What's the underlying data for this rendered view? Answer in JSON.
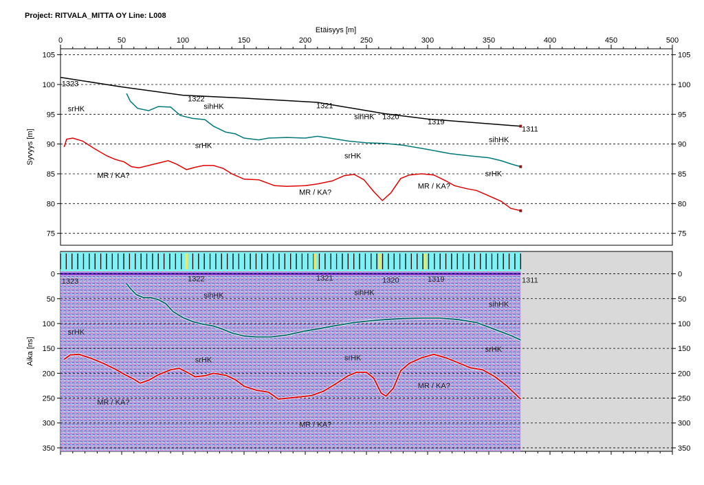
{
  "header": {
    "project_label": "Project: RITVALA_MITTA OY  Line: L008"
  },
  "chart_data": [
    {
      "type": "line",
      "panel": "elevation",
      "xlabel": "Etäisyys [m]",
      "ylabel": "Syvyys [m]",
      "xlim": [
        0,
        500
      ],
      "ylim": [
        73,
        106
      ],
      "x_ticks": [
        0,
        50,
        100,
        150,
        200,
        250,
        300,
        350,
        400,
        450,
        500
      ],
      "y_ticks": [
        75,
        80,
        85,
        90,
        95,
        100,
        105
      ],
      "grid": "horizontal dashed",
      "series": [
        {
          "color": "#000000",
          "points": [
            [
              0,
              101.2
            ],
            [
              50,
              99.6
            ],
            [
              100,
              98.2
            ],
            [
              150,
              97.7
            ],
            [
              210,
              97.0
            ],
            [
              265,
              95.1
            ],
            [
              300,
              94.2
            ],
            [
              376,
              93.0
            ]
          ]
        },
        {
          "color": "#007878",
          "points": [
            [
              54,
              98.5
            ],
            [
              57,
              97.2
            ],
            [
              63,
              96.0
            ],
            [
              72,
              95.6
            ],
            [
              80,
              96.3
            ],
            [
              90,
              96.2
            ],
            [
              98,
              94.8
            ],
            [
              108,
              94.3
            ],
            [
              118,
              94.1
            ],
            [
              125,
              93.0
            ],
            [
              135,
              92.0
            ],
            [
              143,
              91.7
            ],
            [
              150,
              91.0
            ],
            [
              162,
              90.7
            ],
            [
              170,
              91.0
            ],
            [
              185,
              91.1
            ],
            [
              200,
              91.0
            ],
            [
              210,
              91.3
            ],
            [
              220,
              91.0
            ],
            [
              235,
              90.5
            ],
            [
              250,
              90.2
            ],
            [
              265,
              90.1
            ],
            [
              280,
              89.8
            ],
            [
              300,
              89.1
            ],
            [
              318,
              88.4
            ],
            [
              335,
              88.0
            ],
            [
              350,
              87.7
            ],
            [
              360,
              87.2
            ],
            [
              369,
              86.6
            ],
            [
              376,
              86.2
            ]
          ]
        },
        {
          "color": "#e00000",
          "points": [
            [
              3,
              89.5
            ],
            [
              5,
              90.8
            ],
            [
              10,
              91.0
            ],
            [
              18,
              90.5
            ],
            [
              28,
              89.2
            ],
            [
              38,
              88.0
            ],
            [
              45,
              87.4
            ],
            [
              52,
              87.0
            ],
            [
              58,
              86.2
            ],
            [
              64,
              86.0
            ],
            [
              72,
              86.4
            ],
            [
              80,
              86.8
            ],
            [
              88,
              87.2
            ],
            [
              95,
              86.6
            ],
            [
              103,
              85.7
            ],
            [
              110,
              86.1
            ],
            [
              117,
              86.4
            ],
            [
              125,
              86.4
            ],
            [
              133,
              85.9
            ],
            [
              140,
              85.0
            ],
            [
              150,
              84.1
            ],
            [
              162,
              84.0
            ],
            [
              175,
              83.0
            ],
            [
              185,
              82.9
            ],
            [
              200,
              83.0
            ],
            [
              210,
              83.3
            ],
            [
              222,
              83.8
            ],
            [
              232,
              84.7
            ],
            [
              240,
              84.9
            ],
            [
              248,
              84.0
            ],
            [
              256,
              82.0
            ],
            [
              263,
              80.5
            ],
            [
              270,
              81.8
            ],
            [
              278,
              84.2
            ],
            [
              285,
              84.8
            ],
            [
              295,
              85.0
            ],
            [
              305,
              84.8
            ],
            [
              315,
              83.8
            ],
            [
              322,
              83.0
            ],
            [
              332,
              82.5
            ],
            [
              340,
              82.2
            ],
            [
              350,
              81.3
            ],
            [
              360,
              80.4
            ],
            [
              368,
              79.2
            ],
            [
              376,
              78.8
            ]
          ]
        }
      ],
      "annotations": [
        {
          "text": "1323",
          "x": 1,
          "y": 99.7
        },
        {
          "text": "1322",
          "x": 104,
          "y": 97.2
        },
        {
          "text": "1321",
          "x": 209,
          "y": 96.0
        },
        {
          "text": "1320",
          "x": 263,
          "y": 94.2
        },
        {
          "text": "1319",
          "x": 300,
          "y": 93.3
        },
        {
          "text": "1311",
          "x": 377,
          "y": 92.1
        },
        {
          "text": "srHK",
          "x": 6,
          "y": 95.5
        },
        {
          "text": "sihHK",
          "x": 117,
          "y": 95.9
        },
        {
          "text": "sihHK",
          "x": 240,
          "y": 94.2
        },
        {
          "text": "sihHK",
          "x": 350,
          "y": 90.3
        },
        {
          "text": "srHK",
          "x": 110,
          "y": 89.3
        },
        {
          "text": "srHK",
          "x": 232,
          "y": 87.6
        },
        {
          "text": "srHK",
          "x": 347,
          "y": 84.6
        },
        {
          "text": "MR / KA?",
          "x": 30,
          "y": 84.3
        },
        {
          "text": "MR / KA?",
          "x": 195,
          "y": 81.5
        },
        {
          "text": "MR / KA?",
          "x": 292,
          "y": 82.5
        }
      ]
    },
    {
      "type": "line",
      "panel": "radargram",
      "ylabel": "Aika [ns]",
      "xlim": [
        0,
        500
      ],
      "ylim": [
        -45,
        357
      ],
      "y_ticks": [
        0,
        50,
        100,
        150,
        200,
        250,
        300,
        350
      ],
      "data_extent_x": [
        0,
        376
      ],
      "grid": "horizontal dashed",
      "series": [
        {
          "color": "#006a6a",
          "points": [
            [
              54,
              20
            ],
            [
              58,
              32
            ],
            [
              62,
              42
            ],
            [
              68,
              48
            ],
            [
              74,
              48
            ],
            [
              80,
              52
            ],
            [
              86,
              60
            ],
            [
              92,
              76
            ],
            [
              100,
              88
            ],
            [
              108,
              96
            ],
            [
              116,
              101
            ],
            [
              125,
              105
            ],
            [
              132,
              111
            ],
            [
              140,
              119
            ],
            [
              150,
              125
            ],
            [
              160,
              127
            ],
            [
              172,
              127
            ],
            [
              185,
              123
            ],
            [
              200,
              115
            ],
            [
              212,
              110
            ],
            [
              225,
              104
            ],
            [
              240,
              98
            ],
            [
              255,
              94
            ],
            [
              265,
              92
            ],
            [
              280,
              90
            ],
            [
              295,
              89
            ],
            [
              310,
              89
            ],
            [
              325,
              92
            ],
            [
              340,
              98
            ],
            [
              355,
              112
            ],
            [
              368,
              124
            ],
            [
              376,
              133
            ]
          ]
        },
        {
          "color": "#e00000",
          "points": [
            [
              3,
              172
            ],
            [
              8,
              163
            ],
            [
              15,
              162
            ],
            [
              25,
              170
            ],
            [
              35,
              180
            ],
            [
              45,
              192
            ],
            [
              52,
              202
            ],
            [
              60,
              212
            ],
            [
              65,
              220
            ],
            [
              72,
              214
            ],
            [
              80,
              203
            ],
            [
              90,
              193
            ],
            [
              97,
              190
            ],
            [
              105,
              200
            ],
            [
              110,
              207
            ],
            [
              118,
              205
            ],
            [
              125,
              200
            ],
            [
              135,
              204
            ],
            [
              143,
              213
            ],
            [
              150,
              226
            ],
            [
              160,
              234
            ],
            [
              170,
              238
            ],
            [
              178,
              252
            ],
            [
              190,
              249
            ],
            [
              205,
              245
            ],
            [
              215,
              236
            ],
            [
              225,
              221
            ],
            [
              235,
              205
            ],
            [
              242,
              198
            ],
            [
              250,
              198
            ],
            [
              256,
              210
            ],
            [
              262,
              240
            ],
            [
              266,
              246
            ],
            [
              272,
              230
            ],
            [
              278,
              195
            ],
            [
              285,
              180
            ],
            [
              295,
              169
            ],
            [
              305,
              162
            ],
            [
              315,
              169
            ],
            [
              325,
              179
            ],
            [
              335,
              189
            ],
            [
              345,
              193
            ],
            [
              355,
              207
            ],
            [
              365,
              226
            ],
            [
              376,
              252
            ]
          ]
        }
      ],
      "annotations": [
        {
          "text": "1323",
          "x": 1,
          "y": 20
        },
        {
          "text": "1322",
          "x": 104,
          "y": 15
        },
        {
          "text": "1321",
          "x": 209,
          "y": 14
        },
        {
          "text": "1320",
          "x": 263,
          "y": 18
        },
        {
          "text": "1319",
          "x": 300,
          "y": 16
        },
        {
          "text": "1311",
          "x": 377,
          "y": 18
        },
        {
          "text": "sihHK",
          "x": 117,
          "y": 48
        },
        {
          "text": "sihHK",
          "x": 240,
          "y": 43
        },
        {
          "text": "sihHK",
          "x": 350,
          "y": 66
        },
        {
          "text": "srHK",
          "x": 6,
          "y": 122
        },
        {
          "text": "srHK",
          "x": 110,
          "y": 178
        },
        {
          "text": "srHK",
          "x": 232,
          "y": 174
        },
        {
          "text": "srHK",
          "x": 347,
          "y": 157
        },
        {
          "text": "MR / KA?",
          "x": 30,
          "y": 263
        },
        {
          "text": "MR / KA?",
          "x": 195,
          "y": 308
        },
        {
          "text": "MR / KA?",
          "x": 292,
          "y": 230
        }
      ],
      "markers": {
        "count": 80,
        "highlighted_x": [
          103,
          208,
          261,
          298
        ]
      }
    }
  ]
}
